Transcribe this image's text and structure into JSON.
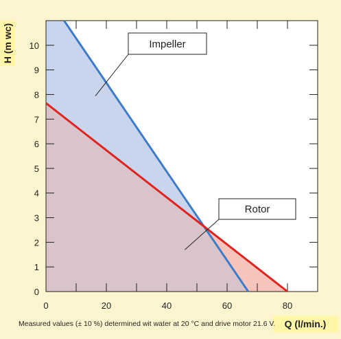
{
  "chart_data": {
    "type": "line",
    "xlabel": "Q (l/min.)",
    "ylabel": "H (m wc)",
    "xlim": [
      0,
      90
    ],
    "ylim": [
      0,
      11
    ],
    "x_ticks": [
      0,
      20,
      40,
      60,
      80
    ],
    "y_ticks": [
      0,
      1,
      2,
      3,
      4,
      5,
      6,
      7,
      8,
      9,
      10
    ],
    "grid": false,
    "series": [
      {
        "name": "Impeller",
        "color": "#3d7cc9",
        "fill": "#c9d5ec",
        "x": [
          6,
          67
        ],
        "y": [
          11,
          0
        ]
      },
      {
        "name": "Rotor",
        "color": "#e0231e",
        "fill": "#f5c5bd",
        "x": [
          0,
          80
        ],
        "y": [
          7.65,
          0
        ]
      }
    ],
    "overlap_fill": "#d9c4cc",
    "annotations": [
      {
        "text": "Impeller",
        "series": "Impeller",
        "point": [
          20,
          8.5
        ]
      },
      {
        "text": "Rotor",
        "series": "Rotor",
        "point": [
          46,
          1.7
        ]
      }
    ],
    "footnote": "Measured values (± 10 %) determined wit water at 20 °C and drive motor 21.6 V."
  }
}
